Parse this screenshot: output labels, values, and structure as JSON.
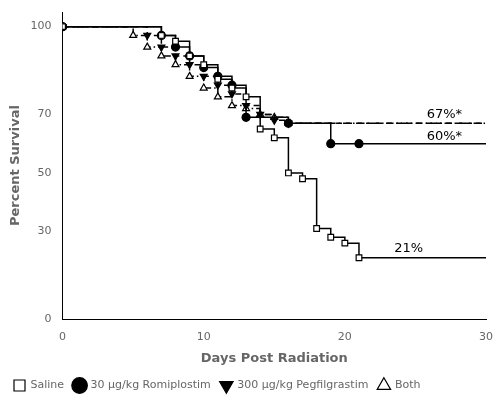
{
  "chart_data": {
    "type": "line",
    "xlabel": "Days Post Radiation",
    "ylabel": "Percent Survival",
    "xlim": [
      0,
      30
    ],
    "ylim": [
      0,
      105
    ],
    "xticks": [
      0,
      10,
      20,
      30
    ],
    "yticks": [
      0,
      30,
      50,
      70,
      100
    ],
    "grid": false,
    "legend": "lower left",
    "series": [
      {
        "name": "Saline",
        "color": "#000000",
        "marker": "open square",
        "line_style": "solid",
        "x": [
          0,
          7,
          7,
          8,
          8,
          9,
          9,
          10,
          10,
          11,
          11,
          12,
          12,
          13,
          13,
          14,
          14,
          15,
          15,
          16,
          16,
          17,
          17,
          18,
          18,
          19,
          19,
          20,
          20,
          21,
          21,
          30
        ],
        "values": [
          100,
          100,
          97,
          97,
          95,
          95,
          90,
          90,
          87,
          87,
          82,
          82,
          79,
          79,
          76,
          76,
          65,
          65,
          62,
          62,
          50,
          50,
          48,
          48,
          31,
          31,
          28,
          28,
          26,
          26,
          21,
          21
        ]
      },
      {
        "name": "30 μg/kg Romiplostim",
        "color": "#000000",
        "marker": "filled circle",
        "line_style": "solid",
        "x": [
          0,
          7,
          7,
          8,
          8,
          9,
          9,
          10,
          10,
          11,
          11,
          12,
          12,
          13,
          13,
          16,
          16,
          19,
          19,
          21,
          21,
          30
        ],
        "values": [
          100,
          100,
          97,
          97,
          93,
          93,
          90,
          90,
          86,
          86,
          83,
          83,
          80,
          80,
          69,
          69,
          67,
          67,
          60,
          60,
          60,
          60
        ]
      },
      {
        "name": "300 μg/kg Pegfilgrastim",
        "color": "#000000",
        "marker": "filled triangle down",
        "line_style": "dashed",
        "x": [
          0,
          6,
          6,
          7,
          7,
          8,
          8,
          9,
          9,
          10,
          10,
          11,
          11,
          12,
          12,
          13,
          13,
          14,
          14,
          15,
          15,
          16,
          16,
          30
        ],
        "values": [
          100,
          100,
          97,
          97,
          93,
          93,
          90,
          90,
          87,
          87,
          83,
          83,
          80,
          80,
          77,
          77,
          73,
          73,
          70,
          70,
          68,
          68,
          67,
          67
        ]
      },
      {
        "name": "Both",
        "color": "#000000",
        "marker": "open triangle up",
        "line_style": "dashdot",
        "x": [
          0,
          5,
          5,
          6,
          6,
          7,
          7,
          8,
          8,
          9,
          9,
          10,
          10,
          11,
          11,
          12,
          12,
          13,
          13,
          14,
          14,
          15,
          15,
          16,
          16,
          30
        ],
        "values": [
          100,
          100,
          97,
          97,
          93,
          93,
          90,
          90,
          87,
          87,
          83,
          83,
          79,
          79,
          76,
          76,
          73,
          73,
          72,
          72,
          70,
          70,
          69,
          69,
          67,
          67
        ]
      }
    ],
    "annotations": [
      {
        "text": "67%*",
        "x": 25.8,
        "y": 70
      },
      {
        "text": "60%*",
        "x": 25.8,
        "y": 62.5
      },
      {
        "text": "21%",
        "x": 23.5,
        "y": 24
      }
    ]
  }
}
